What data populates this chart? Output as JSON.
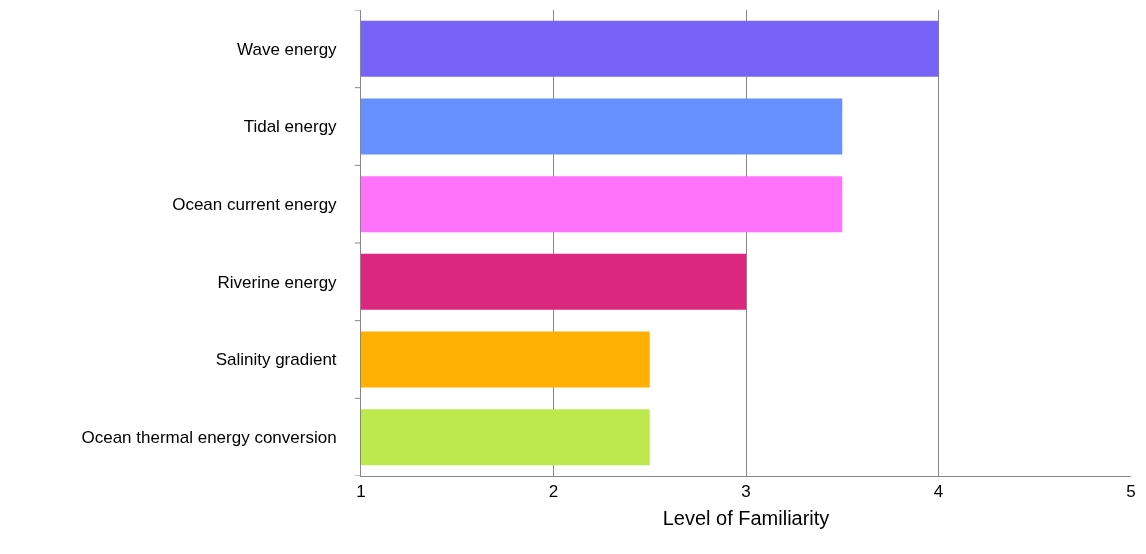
{
  "chart_data": {
    "type": "bar",
    "orientation": "horizontal",
    "xlabel": "Level of Familiarity",
    "categories": [
      "Wave energy",
      "Tidal energy",
      "Ocean current energy",
      "Riverine energy",
      "Salinity gradient",
      "Ocean thermal energy conversion"
    ],
    "values": [
      4,
      3.5,
      3.5,
      3,
      2.5,
      2.5
    ],
    "colors": [
      "#7763f5",
      "#6690ff",
      "#ff73fa",
      "#dc277f",
      "#ffb000",
      "#bde94f"
    ],
    "xlim": [
      1,
      5
    ],
    "xticks": [
      1,
      2,
      3,
      4,
      5
    ],
    "grid": "x",
    "legend": false
  }
}
